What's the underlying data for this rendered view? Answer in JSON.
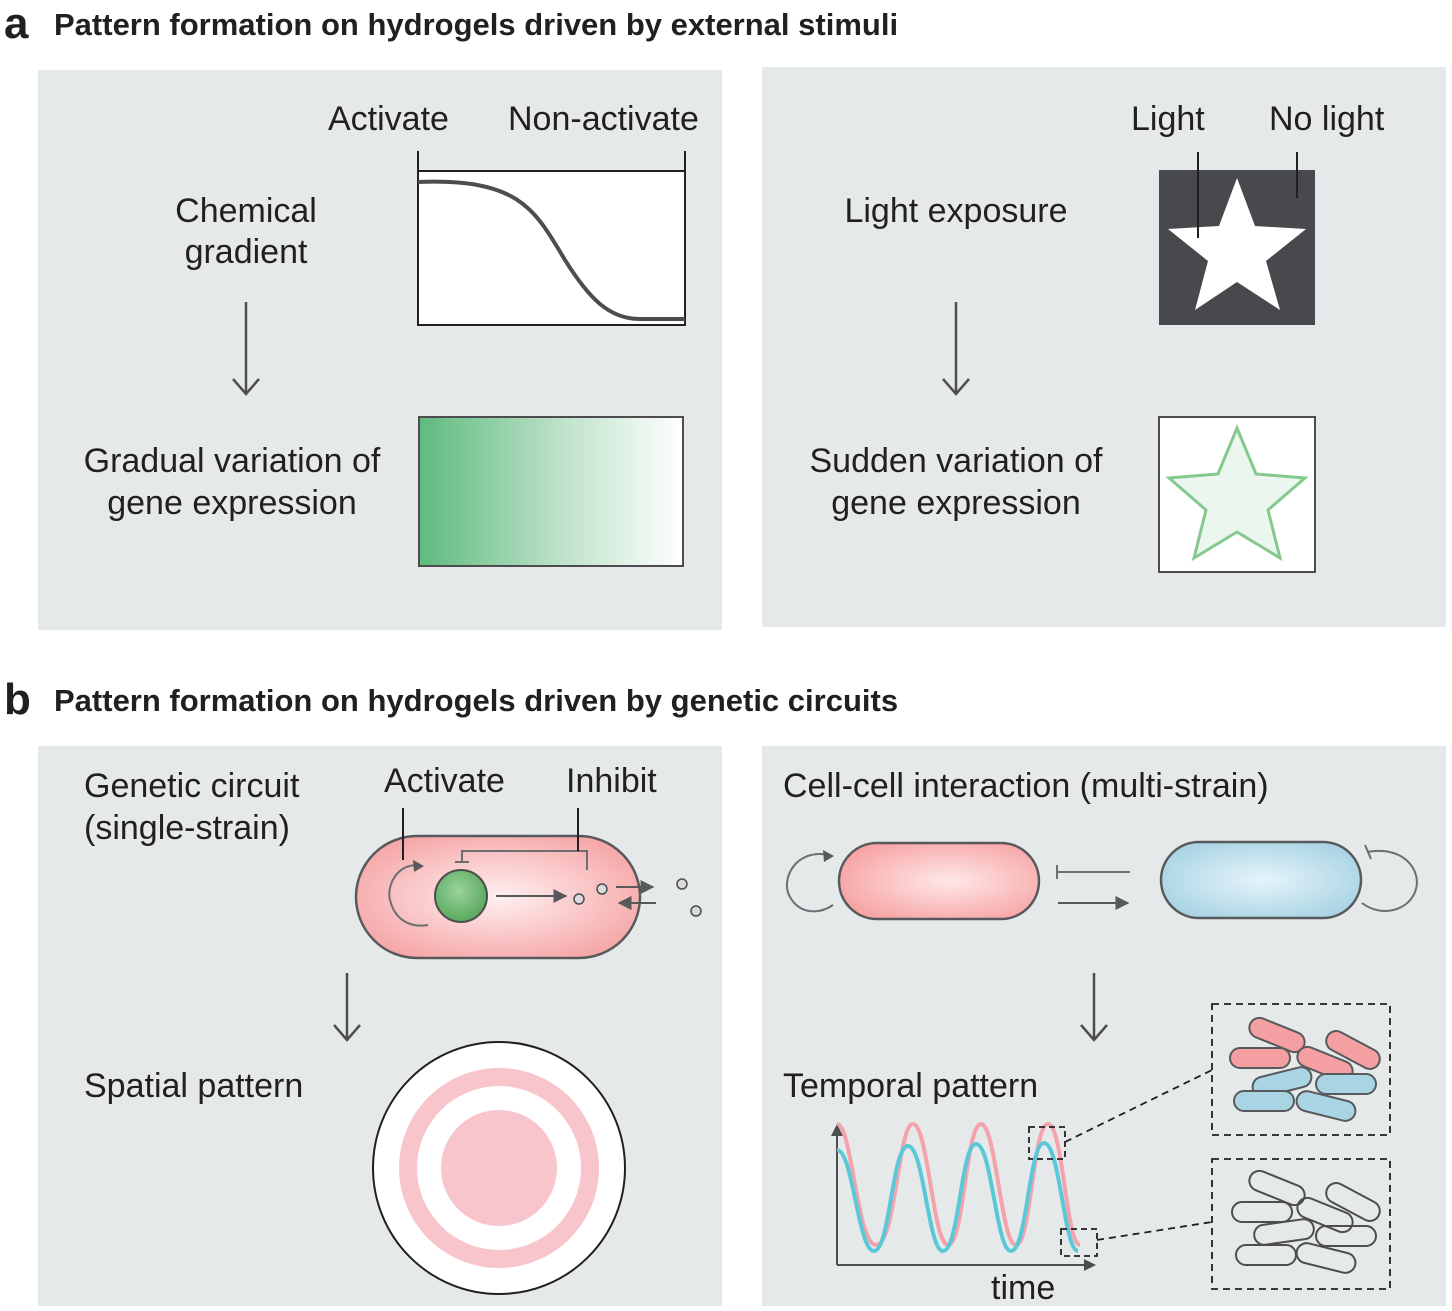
{
  "section_a": {
    "letter": "a",
    "title": "Pattern formation on hydrogels driven by external stimuli",
    "left": {
      "activate_label": "Activate",
      "nonactivate_label": "Non-activate",
      "stimulus_line1": "Chemical",
      "stimulus_line2": "gradient",
      "result_line1": "Gradual variation of",
      "result_line2": "gene expression"
    },
    "right": {
      "light_label": "Light",
      "nolight_label": "No light",
      "stimulus": "Light exposure",
      "result_line1": "Sudden variation of",
      "result_line2": "gene expression"
    }
  },
  "section_b": {
    "letter": "b",
    "title": "Pattern formation on hydrogels driven by genetic circuits",
    "left": {
      "circuit_line1": "Genetic circuit",
      "circuit_line2": "(single-strain)",
      "activate_label": "Activate",
      "inhibit_label": "Inhibit",
      "result": "Spatial pattern"
    },
    "right": {
      "title": "Cell-cell interaction (multi-strain)",
      "result": "Temporal pattern",
      "time_label": "time"
    }
  },
  "colors": {
    "panel_bg": "#e6e9ea",
    "text": "#231f20",
    "outline": "#58595b",
    "green": "#5fba7d",
    "pink": "#f8c5cd",
    "red_cell": "#f4a0a2",
    "blue_cell": "#a9d4e4",
    "cyan_wave": "#5ac8d8",
    "pink_wave": "#f4a3ad"
  }
}
